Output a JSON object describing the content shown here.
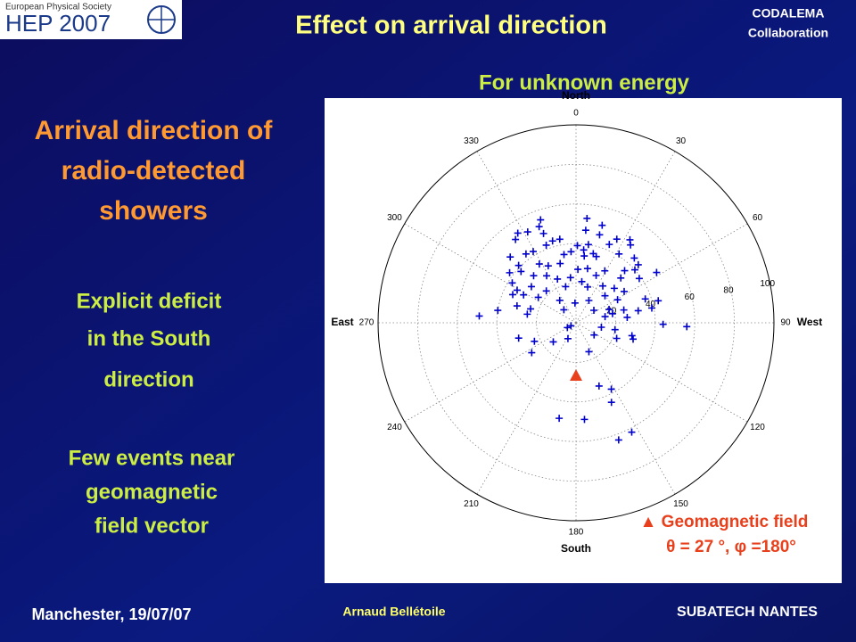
{
  "logo": {
    "society": "European Physical Society",
    "event": "HEP 2007"
  },
  "title": "Effect on arrival direction",
  "collaboration": [
    "CODALEMA",
    "Collaboration"
  ],
  "left_text": {
    "heading": [
      "Arrival direction of",
      "radio-detected",
      "showers"
    ],
    "deficit": [
      "Explicit deficit",
      "in the South",
      "direction"
    ],
    "few_events": [
      "Few events near",
      "geomagnetic",
      "field vector"
    ]
  },
  "footer": {
    "place_date": "Manchester, 19/07/07",
    "author": "Arnaud Bellétoile",
    "lab": "SUBATECH NANTES"
  },
  "chart_data": {
    "type": "polar-scatter",
    "title": "For unknown energy",
    "rlim": [
      0,
      100
    ],
    "rticks": [
      20,
      40,
      60,
      80,
      100
    ],
    "angle_ticks": [
      0,
      30,
      60,
      90,
      120,
      150,
      180,
      210,
      240,
      270,
      300,
      330
    ],
    "direction_labels": [
      {
        "value": 0,
        "label": "North"
      },
      {
        "value": 90,
        "label": "West"
      },
      {
        "value": 180,
        "label": "South"
      },
      {
        "value": 270,
        "label": "East"
      }
    ],
    "color": "#0000cc",
    "theta": [
      55,
      52,
      54,
      52,
      52,
      48,
      43,
      53,
      51,
      47,
      46,
      47,
      50,
      48,
      43,
      42,
      39,
      40,
      43,
      37,
      36,
      36,
      35,
      42,
      43,
      47,
      42,
      41,
      38,
      35,
      31,
      32,
      34,
      35,
      41,
      44,
      43,
      48,
      32,
      28,
      24,
      23,
      21,
      26,
      28,
      27,
      30,
      36,
      40,
      32,
      39,
      38,
      34,
      29,
      22,
      19,
      19,
      23,
      26,
      13,
      29,
      43,
      35,
      30,
      23,
      14,
      10,
      20,
      24,
      37,
      40,
      24,
      31,
      9,
      11,
      18,
      25,
      32,
      39,
      49,
      25,
      15,
      19,
      26,
      44,
      56,
      3,
      5,
      13,
      20,
      29,
      30,
      23,
      15,
      9,
      11,
      22,
      30,
      27,
      16,
      34,
      38,
      44,
      49,
      49,
      62,
      63
    ],
    "phi": [
      341,
      339,
      327,
      332,
      324,
      340,
      349,
      6,
      15,
      6,
      15,
      26,
      33,
      35,
      344,
      339,
      1,
      9,
      23,
      6,
      14,
      356,
      350,
      329,
      324,
      315,
      307,
      315,
      313,
      328,
      345,
      334,
      7,
      17,
      32,
      42,
      47,
      58,
      318,
      328,
      337,
      353,
      8,
      23,
      12,
      2,
      29,
      43,
      48,
      45,
      55,
      302,
      299,
      309,
      317,
      344,
      18,
      36,
      48,
      30,
      57,
      75,
      294,
      298,
      304,
      324,
      357,
      47,
      61,
      71,
      279,
      287,
      286,
      317,
      55,
      68,
      75,
      79,
      79,
      274,
      280,
      78,
      76,
      84,
      91,
      92,
      239,
      241,
      100,
      100,
      103,
      255,
      246,
      230,
      207,
      124,
      111,
      106,
      236,
      156,
      160,
      152,
      156,
      190,
      175,
      153,
      160
    ],
    "marker": {
      "theta": 27,
      "phi": 180,
      "color": "#e8401c"
    },
    "annotation": [
      "▲ Geomagnetic field",
      "θ  = 27 °, φ =180°"
    ]
  }
}
